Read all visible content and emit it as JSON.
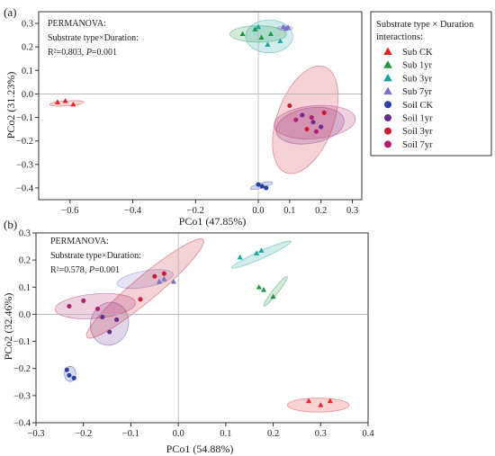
{
  "chart_data": [
    {
      "type": "scatter",
      "panel_label": "(a)",
      "xlabel": "PCo1 (47.85%)",
      "ylabel": "PCo2 (31.23%)",
      "xlim": [
        -0.7,
        0.33
      ],
      "ylim": [
        -0.45,
        0.35
      ],
      "xticks": [
        -0.6,
        -0.4,
        -0.2,
        0.0,
        0.1,
        0.2,
        0.3
      ],
      "xtick_labels": [
        "−0.6",
        "−0.4",
        "−0.2",
        "0.0",
        "0.1",
        "0.2",
        "0.3"
      ],
      "yticks": [
        0.3,
        0.2,
        0.1,
        0.0,
        -0.1,
        -0.2,
        -0.3,
        -0.4
      ],
      "ytick_labels": [
        "0.3",
        "0.2",
        "0.1",
        "0.0",
        "−0.1",
        "−0.2",
        "−0.3",
        "−0.4"
      ],
      "stats_lines": [
        "PERMANOVA:",
        "Substrate type×Duration:"
      ],
      "stat_r2": "R²=0.803, ",
      "stat_p_prefix": "P",
      "stat_p_value": "=0.001",
      "ellipses": [
        {
          "group": "Sub CK",
          "cx": -0.61,
          "cy": -0.04,
          "rx": 0.055,
          "ry": 0.011,
          "angle": -4
        },
        {
          "group": "Sub 1yr",
          "cx": 0.0,
          "cy": 0.255,
          "rx": 0.09,
          "ry": 0.035,
          "angle": 0
        },
        {
          "group": "Sub 3yr",
          "cx": 0.035,
          "cy": 0.245,
          "rx": 0.075,
          "ry": 0.07,
          "angle": 0
        },
        {
          "group": "Sub 7yr",
          "cx": 0.085,
          "cy": 0.28,
          "rx": 0.025,
          "ry": 0.009,
          "angle": 0
        },
        {
          "group": "Soil CK",
          "cx": 0.01,
          "cy": -0.39,
          "rx": 0.037,
          "ry": 0.011,
          "angle": -15
        },
        {
          "group": "Soil 1yr",
          "cx": 0.165,
          "cy": -0.135,
          "rx": 0.11,
          "ry": 0.075,
          "angle": -10
        },
        {
          "group": "Soil 3yr",
          "cx": 0.15,
          "cy": -0.11,
          "rx": 0.09,
          "ry": 0.24,
          "angle": 20
        },
        {
          "group": "Soil 7yr",
          "cx": 0.18,
          "cy": -0.12,
          "rx": 0.13,
          "ry": 0.07,
          "angle": -5
        }
      ],
      "points": [
        {
          "group": "Sub CK",
          "x": -0.64,
          "y": -0.035
        },
        {
          "group": "Sub CK",
          "x": -0.615,
          "y": -0.03
        },
        {
          "group": "Sub CK",
          "x": -0.59,
          "y": -0.045
        },
        {
          "group": "Sub 1yr",
          "x": -0.05,
          "y": 0.255
        },
        {
          "group": "Sub 1yr",
          "x": -0.01,
          "y": 0.275
        },
        {
          "group": "Sub 1yr",
          "x": 0.04,
          "y": 0.255
        },
        {
          "group": "Sub 1yr",
          "x": 0.01,
          "y": 0.24
        },
        {
          "group": "Sub 3yr",
          "x": 0.0,
          "y": 0.285
        },
        {
          "group": "Sub 3yr",
          "x": 0.07,
          "y": 0.225
        },
        {
          "group": "Sub 3yr",
          "x": 0.03,
          "y": 0.21
        },
        {
          "group": "Sub 7yr",
          "x": 0.08,
          "y": 0.285
        },
        {
          "group": "Sub 7yr",
          "x": 0.095,
          "y": 0.283
        },
        {
          "group": "Sub 7yr",
          "x": 0.088,
          "y": 0.277
        },
        {
          "group": "Soil CK",
          "x": 0.0,
          "y": -0.385
        },
        {
          "group": "Soil CK",
          "x": 0.012,
          "y": -0.393
        },
        {
          "group": "Soil CK",
          "x": 0.025,
          "y": -0.4
        },
        {
          "group": "Soil 1yr",
          "x": 0.14,
          "y": -0.09
        },
        {
          "group": "Soil 1yr",
          "x": 0.175,
          "y": -0.12
        },
        {
          "group": "Soil 1yr",
          "x": 0.2,
          "y": -0.14
        },
        {
          "group": "Soil 3yr",
          "x": 0.1,
          "y": -0.05
        },
        {
          "group": "Soil 3yr",
          "x": 0.155,
          "y": -0.15
        },
        {
          "group": "Soil 3yr",
          "x": 0.21,
          "y": -0.08
        },
        {
          "group": "Soil 7yr",
          "x": 0.12,
          "y": -0.11
        },
        {
          "group": "Soil 7yr",
          "x": 0.185,
          "y": -0.16
        },
        {
          "group": "Soil 7yr",
          "x": 0.17,
          "y": -0.1
        }
      ]
    },
    {
      "type": "scatter",
      "panel_label": "(b)",
      "xlabel": "PCo1 (54.88%)",
      "ylabel": "PCo2 (32.46%)",
      "xlim": [
        -0.3,
        0.4
      ],
      "ylim": [
        -0.4,
        0.3
      ],
      "xticks": [
        -0.3,
        -0.2,
        -0.1,
        0.0,
        0.1,
        0.2,
        0.3,
        0.4
      ],
      "xtick_labels": [
        "−0.3",
        "−0.2",
        "−0.1",
        "0.0",
        "0.1",
        "0.2",
        "0.3",
        "0.4"
      ],
      "yticks": [
        0.3,
        0.2,
        0.1,
        0.0,
        -0.1,
        -0.2,
        -0.3,
        -0.4
      ],
      "ytick_labels": [
        "0.3",
        "0.2",
        "0.1",
        "0.0",
        "−0.1",
        "−0.2",
        "−0.3",
        "−0.4"
      ],
      "stats_lines": [
        "PERMANOVA:",
        "Substrate type×Duration:"
      ],
      "stat_r2": "R²=0.578, ",
      "stat_p_prefix": "P",
      "stat_p_value": "=0.001",
      "ellipses": [
        {
          "group": "Sub CK",
          "cx": 0.295,
          "cy": -0.335,
          "rx": 0.065,
          "ry": 0.026,
          "angle": 0
        },
        {
          "group": "Sub 1yr",
          "cx": 0.205,
          "cy": 0.085,
          "rx": 0.04,
          "ry": 0.01,
          "angle": -52
        },
        {
          "group": "Sub 3yr",
          "cx": 0.175,
          "cy": 0.22,
          "rx": 0.068,
          "ry": 0.014,
          "angle": -24
        },
        {
          "group": "Sub 7yr",
          "cx": -0.07,
          "cy": 0.13,
          "rx": 0.06,
          "ry": 0.03,
          "angle": -10
        },
        {
          "group": "Soil CK",
          "cx": -0.228,
          "cy": -0.22,
          "rx": 0.012,
          "ry": 0.028,
          "angle": 0
        },
        {
          "group": "Soil 1yr",
          "cx": -0.145,
          "cy": -0.035,
          "rx": 0.04,
          "ry": 0.08,
          "angle": 15
        },
        {
          "group": "Soil 3yr",
          "cx": -0.07,
          "cy": 0.095,
          "rx": 0.16,
          "ry": 0.045,
          "angle": -40
        },
        {
          "group": "Soil 7yr",
          "cx": -0.175,
          "cy": 0.03,
          "rx": 0.085,
          "ry": 0.045,
          "angle": -5
        }
      ],
      "points": [
        {
          "group": "Sub CK",
          "x": 0.275,
          "y": -0.32
        },
        {
          "group": "Sub CK",
          "x": 0.3,
          "y": -0.335
        },
        {
          "group": "Sub CK",
          "x": 0.32,
          "y": -0.32
        },
        {
          "group": "Sub 1yr",
          "x": 0.17,
          "y": 0.1
        },
        {
          "group": "Sub 1yr",
          "x": 0.18,
          "y": 0.09
        },
        {
          "group": "Sub 1yr",
          "x": 0.2,
          "y": 0.065
        },
        {
          "group": "Sub 3yr",
          "x": 0.13,
          "y": 0.21
        },
        {
          "group": "Sub 3yr",
          "x": 0.165,
          "y": 0.225
        },
        {
          "group": "Sub 3yr",
          "x": 0.175,
          "y": 0.235
        },
        {
          "group": "Sub 7yr",
          "x": -0.04,
          "y": 0.12
        },
        {
          "group": "Sub 7yr",
          "x": -0.03,
          "y": 0.13
        },
        {
          "group": "Sub 7yr",
          "x": -0.01,
          "y": 0.12
        },
        {
          "group": "Soil CK",
          "x": -0.235,
          "y": -0.205
        },
        {
          "group": "Soil CK",
          "x": -0.23,
          "y": -0.225
        },
        {
          "group": "Soil CK",
          "x": -0.22,
          "y": -0.235
        },
        {
          "group": "Soil 1yr",
          "x": -0.16,
          "y": -0.01
        },
        {
          "group": "Soil 1yr",
          "x": -0.145,
          "y": -0.065
        },
        {
          "group": "Soil 1yr",
          "x": -0.13,
          "y": -0.02
        },
        {
          "group": "Soil 3yr",
          "x": -0.08,
          "y": 0.055
        },
        {
          "group": "Soil 3yr",
          "x": -0.05,
          "y": 0.14
        },
        {
          "group": "Soil 3yr",
          "x": -0.03,
          "y": 0.15
        },
        {
          "group": "Soil 7yr",
          "x": -0.23,
          "y": 0.03
        },
        {
          "group": "Soil 7yr",
          "x": -0.2,
          "y": 0.05
        },
        {
          "group": "Soil 7yr",
          "x": -0.17,
          "y": 0.02
        }
      ]
    }
  ],
  "legend": {
    "title_lines": [
      "Substrate type × Duration",
      "interactions:"
    ],
    "placement": "right of panel (a)",
    "items": [
      {
        "label": "Sub CK",
        "marker": "triangle",
        "color": "#e8232a"
      },
      {
        "label": "Sub 1yr",
        "marker": "triangle",
        "color": "#1a9641"
      },
      {
        "label": "Sub 3yr",
        "marker": "triangle",
        "color": "#19a2a0"
      },
      {
        "label": "Sub 7yr",
        "marker": "triangle",
        "color": "#7b6fc6"
      },
      {
        "label": "Soil CK",
        "marker": "circle",
        "color": "#2b3fa5"
      },
      {
        "label": "Soil 1yr",
        "marker": "circle",
        "color": "#6a2c91"
      },
      {
        "label": "Soil 3yr",
        "marker": "circle",
        "color": "#c81e33"
      },
      {
        "label": "Soil 7yr",
        "marker": "circle",
        "color": "#b0206f"
      }
    ]
  }
}
